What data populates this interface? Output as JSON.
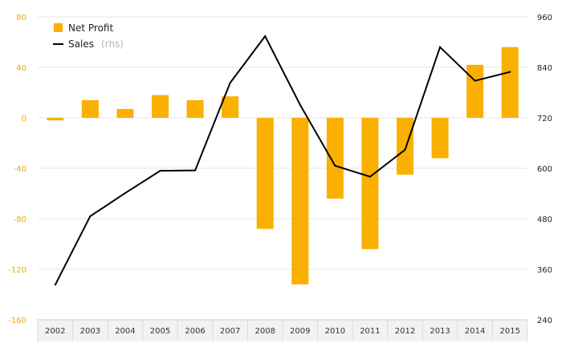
{
  "chart_data": {
    "type": "bar",
    "categories": [
      "2002",
      "2003",
      "2004",
      "2005",
      "2006",
      "2007",
      "2008",
      "2009",
      "2010",
      "2011",
      "2012",
      "2013",
      "2014",
      "2015"
    ],
    "series": [
      {
        "name": "Net Profit",
        "type": "bar",
        "axis": "left",
        "color": "#f9b000",
        "values": [
          -2,
          14,
          7,
          18,
          14,
          17,
          -88,
          -132,
          -64,
          -104,
          -45,
          -32,
          42,
          56
        ]
      },
      {
        "name": "Sales",
        "name_suffix": "(rhs)",
        "type": "line",
        "axis": "right",
        "color": "#000000",
        "values": [
          323,
          486,
          541,
          594,
          595,
          803,
          914,
          751,
          606,
          580,
          644,
          888,
          808,
          829
        ]
      }
    ],
    "y_left": {
      "ylim": [
        -160,
        80
      ],
      "ticks": [
        "80",
        "40",
        "0",
        "-40",
        "-80",
        "-120",
        "-160"
      ],
      "color": "#f0a800"
    },
    "y_right": {
      "ylim": [
        240,
        960
      ],
      "ticks": [
        "960",
        "840",
        "720",
        "600",
        "480",
        "360",
        "240"
      ]
    },
    "grid": true,
    "legend_position": "top-left"
  }
}
